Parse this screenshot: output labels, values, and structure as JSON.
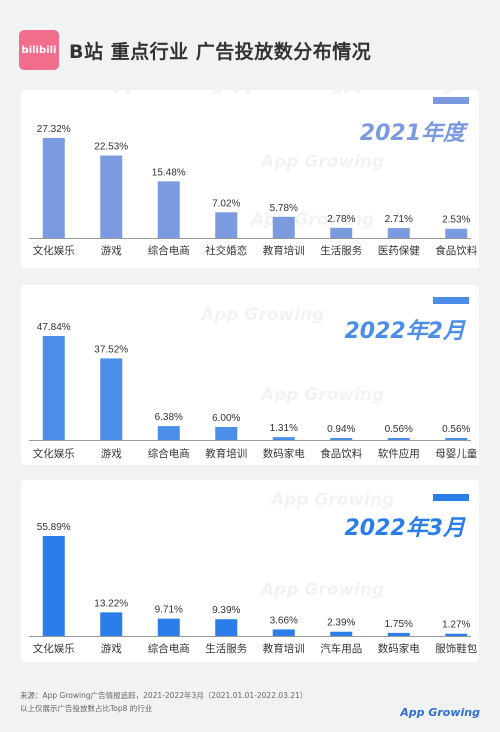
{
  "header": {
    "logo_text": "bilibili",
    "title": "B站 重点行业 广告投放数分布情况"
  },
  "watermark": "App Growing",
  "chart_data": [
    {
      "type": "bar",
      "title": "2021年度",
      "color": "#7c9ae0",
      "accent": "#7c9ae0",
      "categories": [
        "文化娱乐",
        "游戏",
        "综合电商",
        "社交婚恋",
        "教育培训",
        "生活服务",
        "医药保健",
        "食品饮料"
      ],
      "values": [
        27.32,
        22.53,
        15.48,
        7.02,
        5.78,
        2.78,
        2.71,
        2.53
      ],
      "value_labels": [
        "27.32%",
        "22.53%",
        "15.48%",
        "7.02%",
        "5.78%",
        "2.78%",
        "2.71%",
        "2.53%"
      ]
    },
    {
      "type": "bar",
      "title": "2022年2月",
      "color": "#4a8ee8",
      "accent": "#4a8ee8",
      "categories": [
        "文化娱乐",
        "游戏",
        "综合电商",
        "教育培训",
        "数码家电",
        "食品饮料",
        "软件应用",
        "母婴儿童"
      ],
      "values": [
        47.84,
        37.52,
        6.38,
        6.0,
        1.31,
        0.94,
        0.56,
        0.56
      ],
      "value_labels": [
        "47.84%",
        "37.52%",
        "6.38%",
        "6.00%",
        "1.31%",
        "0.94%",
        "0.56%",
        "0.56%"
      ]
    },
    {
      "type": "bar",
      "title": "2022年3月",
      "color": "#2b7de9",
      "accent": "#2b7de9",
      "categories": [
        "文化娱乐",
        "游戏",
        "综合电商",
        "生活服务",
        "教育培训",
        "汽车用品",
        "数码家电",
        "服饰鞋包"
      ],
      "values": [
        55.89,
        13.22,
        9.71,
        9.39,
        3.66,
        2.39,
        1.75,
        1.27
      ],
      "value_labels": [
        "55.89%",
        "13.22%",
        "9.71%",
        "9.39%",
        "3.66%",
        "2.39%",
        "1.75%",
        "1.27%"
      ]
    }
  ],
  "footer": {
    "source": "来源：App Growing广告情报追踪，2021-2022年3月（2021.01.01-2022.03.21）",
    "note": "以上仅展示广告投放数占比Top8 的行业",
    "brand": "App Growing"
  }
}
